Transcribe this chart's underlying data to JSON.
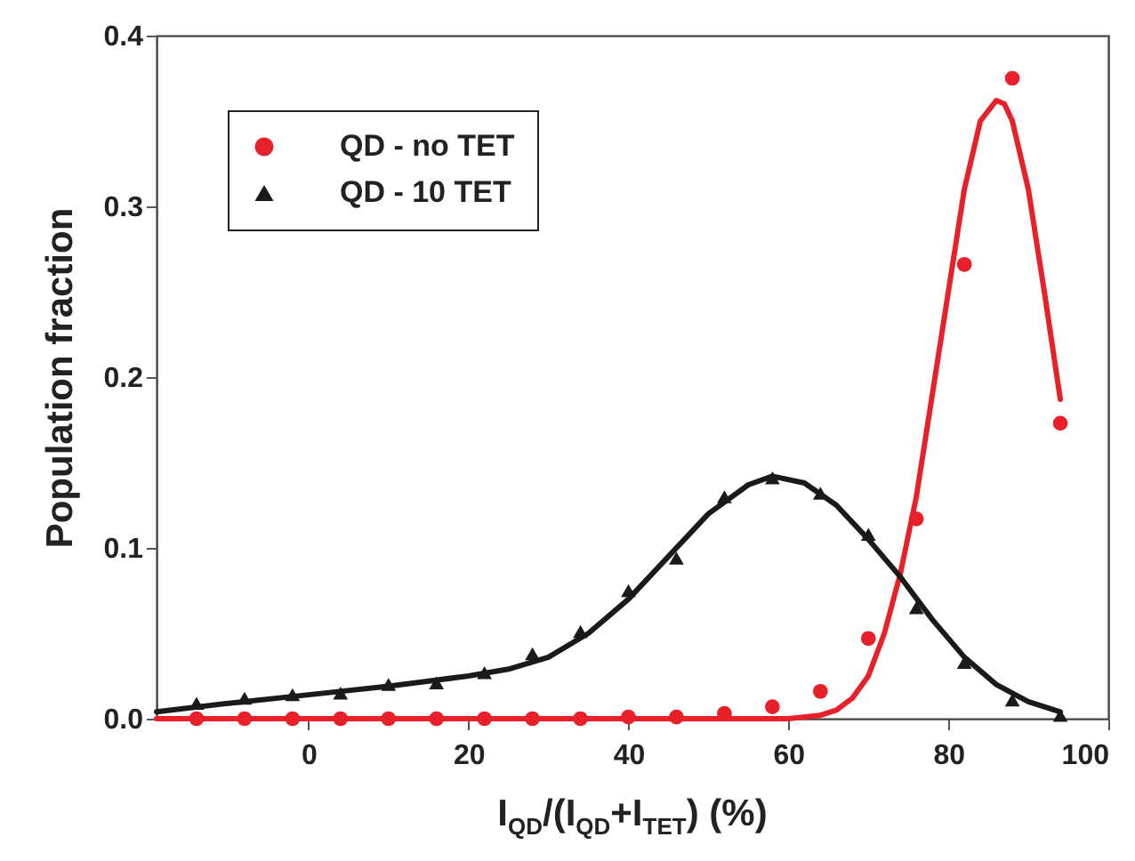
{
  "chart_data": {
    "type": "scatter",
    "xlabel": "I$_{QD}$/(I$_{QD}$+I$_{TET}$) (%)",
    "ylabel": "Population fraction",
    "xlim": [
      -19,
      100
    ],
    "xticks": [
      0,
      20,
      40,
      60,
      80,
      100
    ],
    "ylim": [
      0,
      0.4
    ],
    "yticks": [
      {
        "value": 0,
        "label": "0.0"
      },
      0.1,
      0.2,
      0.3,
      0.4
    ],
    "legend": "top left",
    "series": [
      {
        "name": "QD - no TET",
        "color": "#e8202a",
        "marker": "circle",
        "x": [
          -14,
          -8,
          -2,
          4,
          10,
          16,
          22,
          28,
          34,
          40,
          46,
          52,
          58,
          64,
          70,
          76,
          82,
          88,
          94
        ],
        "values": [
          0,
          0,
          0,
          0,
          0,
          0,
          0,
          0,
          0,
          0.001,
          0.001,
          0.003,
          0.007,
          0.016,
          0.047,
          0.117,
          0.266,
          0.375,
          0.173
        ]
      },
      {
        "name": "QD - 10 TET",
        "color": "#1a1a1a",
        "marker": "triangle",
        "x": [
          -14,
          -8,
          -2,
          4,
          10,
          16,
          22,
          28,
          34,
          40,
          46,
          52,
          58,
          64,
          70,
          76,
          82,
          88,
          94
        ],
        "values": [
          0.009,
          0.012,
          0.014,
          0.015,
          0.02,
          0.021,
          0.027,
          0.038,
          0.051,
          0.075,
          0.094,
          0.13,
          0.141,
          0.132,
          0.108,
          0.065,
          0.033,
          0.011,
          0.002
        ]
      },
      {
        "type": "line",
        "color": "#e8202a",
        "marker": "none",
        "line_style": "solid",
        "x": [
          -19,
          60,
          64,
          66,
          68,
          70,
          72,
          74,
          76,
          78,
          80,
          82,
          84,
          86,
          87,
          88,
          90,
          92,
          94
        ],
        "values": [
          0,
          0,
          0.002,
          0.005,
          0.012,
          0.025,
          0.05,
          0.085,
          0.13,
          0.19,
          0.25,
          0.31,
          0.35,
          0.362,
          0.36,
          0.35,
          0.31,
          0.25,
          0.187
        ]
      },
      {
        "type": "line",
        "color": "#1a1a1a",
        "marker": "none",
        "line_style": "solid",
        "x": [
          -19,
          -10,
          0,
          10,
          20,
          25,
          30,
          35,
          40,
          45,
          50,
          55,
          58,
          62,
          66,
          70,
          74,
          78,
          82,
          86,
          90,
          94
        ],
        "values": [
          0.004,
          0.009,
          0.014,
          0.019,
          0.025,
          0.029,
          0.036,
          0.05,
          0.07,
          0.095,
          0.12,
          0.137,
          0.142,
          0.138,
          0.125,
          0.105,
          0.083,
          0.058,
          0.036,
          0.02,
          0.01,
          0.004
        ]
      }
    ]
  }
}
